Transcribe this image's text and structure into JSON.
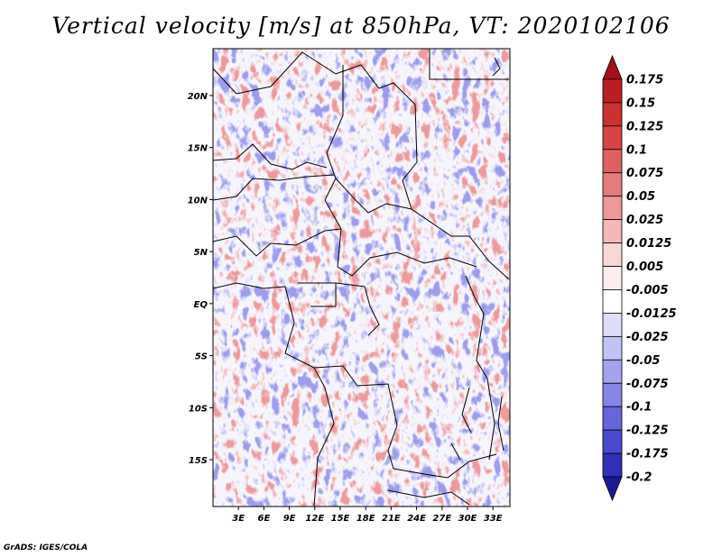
{
  "map": {
    "title": "Vertical velocity [m/s] at 850hPa, VT: 2020102106",
    "variable": "Vertical velocity",
    "units": "m/s",
    "level": "850hPa",
    "valid_time": "2020102106",
    "lon_range_deg": [
      0,
      35
    ],
    "lat_range_deg": [
      -19.5,
      24.5
    ],
    "lon_ticks": [
      {
        "value": 3,
        "label": "3E"
      },
      {
        "value": 6,
        "label": "6E"
      },
      {
        "value": 9,
        "label": "9E"
      },
      {
        "value": 12,
        "label": "12E"
      },
      {
        "value": 15,
        "label": "15E"
      },
      {
        "value": 18,
        "label": "18E"
      },
      {
        "value": 21,
        "label": "21E"
      },
      {
        "value": 24,
        "label": "24E"
      },
      {
        "value": 27,
        "label": "27E"
      },
      {
        "value": 30,
        "label": "30E"
      },
      {
        "value": 33,
        "label": "33E"
      }
    ],
    "lat_ticks": [
      {
        "value": 20,
        "label": "20N"
      },
      {
        "value": 15,
        "label": "15N"
      },
      {
        "value": 10,
        "label": "10N"
      },
      {
        "value": 5,
        "label": "5N"
      },
      {
        "value": 0,
        "label": "EQ"
      },
      {
        "value": -5,
        "label": "5S"
      },
      {
        "value": -10,
        "label": "10S"
      },
      {
        "value": -15,
        "label": "15S"
      }
    ],
    "colorbar": {
      "levels": [
        "0.175",
        "0.15",
        "0.125",
        "0.1",
        "0.075",
        "0.05",
        "0.025",
        "0.0125",
        "0.005",
        "-0.005",
        "-0.0125",
        "-0.025",
        "-0.05",
        "-0.075",
        "-0.1",
        "-0.125",
        "-0.175",
        "-0.2"
      ],
      "colors": [
        "#a50f15",
        "#bb1e22",
        "#cc3030",
        "#d94444",
        "#e06060",
        "#e77a7a",
        "#ee9898",
        "#f4b8b8",
        "#f9d7d7",
        "#fdeeee",
        "#ffffff",
        "#dcdcfb",
        "#c2c2f6",
        "#a3a3f0",
        "#8585e8",
        "#6666dc",
        "#4a4acc",
        "#3030b8",
        "#1a1a99"
      ]
    },
    "credit": "GrADS: IGES/COLA"
  }
}
